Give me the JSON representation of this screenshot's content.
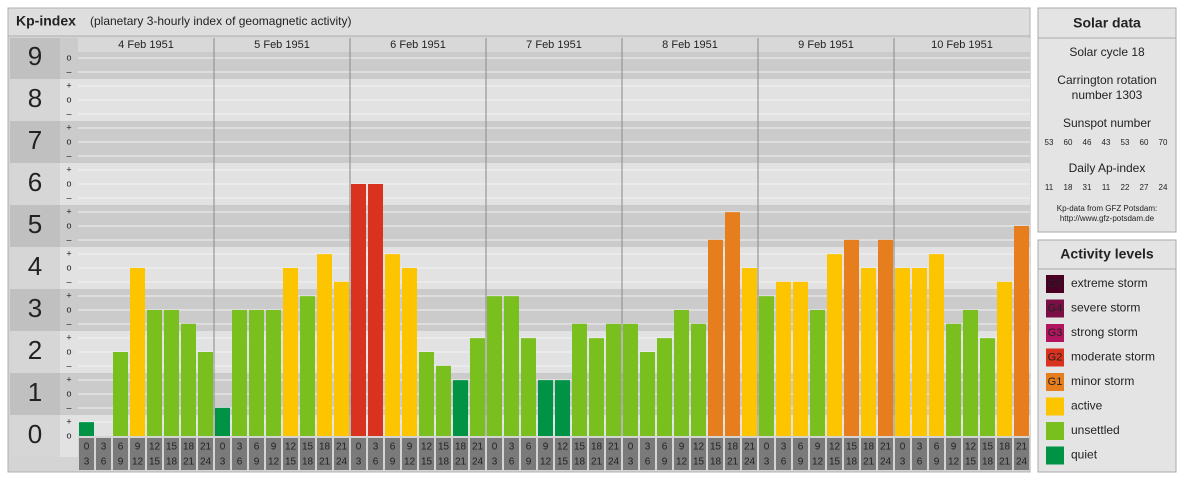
{
  "chart_data": {
    "type": "bar",
    "title": "Kp-index",
    "subtitle": "(planetary 3-hourly index of geomagnetic activity)",
    "days": [
      "4 Feb 1951",
      "5 Feb 1951",
      "6 Feb 1951",
      "7 Feb 1951",
      "8 Feb 1951",
      "9 Feb 1951",
      "10 Feb 1951"
    ],
    "hours_from": [
      0,
      3,
      6,
      9,
      12,
      15,
      18,
      21
    ],
    "hours_to": [
      3,
      6,
      9,
      12,
      15,
      18,
      21,
      24
    ],
    "values": [
      0.33,
      0,
      2,
      4,
      3,
      3,
      2.67,
      2,
      0.67,
      3,
      3,
      3,
      4,
      3.33,
      4.33,
      3.67,
      6,
      6,
      4.33,
      4,
      2,
      1.67,
      1.33,
      2.33,
      3.33,
      3.33,
      2.33,
      1.33,
      1.33,
      2.67,
      2.33,
      2.67,
      2.67,
      2,
      2.33,
      3,
      2.67,
      4.67,
      5.33,
      4,
      3.33,
      3.67,
      3.67,
      3,
      4.33,
      4.67,
      4,
      4.67,
      4,
      4,
      4.33,
      2.67,
      3,
      2.33,
      3.67,
      5
    ],
    "colors": [
      "#009245",
      "#009245",
      "#79c01f",
      "#fdc400",
      "#79c01f",
      "#79c01f",
      "#79c01f",
      "#79c01f",
      "#009245",
      "#79c01f",
      "#79c01f",
      "#79c01f",
      "#fdc400",
      "#79c01f",
      "#fdc400",
      "#fdc400",
      "#d9321f",
      "#d9321f",
      "#fdc400",
      "#fdc400",
      "#79c01f",
      "#79c01f",
      "#009245",
      "#79c01f",
      "#79c01f",
      "#79c01f",
      "#79c01f",
      "#009245",
      "#009245",
      "#79c01f",
      "#79c01f",
      "#79c01f",
      "#79c01f",
      "#79c01f",
      "#79c01f",
      "#79c01f",
      "#79c01f",
      "#e67e1d",
      "#e67e1d",
      "#fdc400",
      "#79c01f",
      "#fdc400",
      "#fdc400",
      "#79c01f",
      "#fdc400",
      "#e67e1d",
      "#fdc400",
      "#e67e1d",
      "#fdc400",
      "#fdc400",
      "#fdc400",
      "#79c01f",
      "#79c01f",
      "#79c01f",
      "#fdc400",
      "#e67e1d"
    ],
    "ylim": [
      0,
      9
    ],
    "yticks": [
      0,
      1,
      2,
      3,
      4,
      5,
      6,
      7,
      8,
      9
    ],
    "minor_tick_labels": [
      "–",
      "o",
      "+"
    ],
    "grid": true
  },
  "solar_data": {
    "title": "Solar data",
    "solar_cycle": "Solar cycle 18",
    "carrington": [
      "Carrington rotation",
      "number 1303"
    ],
    "sunspot_title": "Sunspot number",
    "sunspot": [
      53,
      60,
      46,
      43,
      53,
      60,
      70
    ],
    "ap_title": "Daily Ap-index",
    "ap": [
      11,
      18,
      31,
      11,
      22,
      27,
      24
    ],
    "source": "Kp-data from GFZ Potsdam:",
    "url": "http://www.gfz-potsdam.de"
  },
  "activity_levels": {
    "title": "Activity levels",
    "levels": [
      {
        "code": "G5",
        "name": "extreme storm",
        "color": "#4a0024"
      },
      {
        "code": "G4",
        "name": "severe storm",
        "color": "#7a0f45"
      },
      {
        "code": "G3",
        "name": "strong storm",
        "color": "#b0155e"
      },
      {
        "code": "G2",
        "name": "moderate storm",
        "color": "#d9321f"
      },
      {
        "code": "G1",
        "name": "minor storm",
        "color": "#e67e1d"
      },
      {
        "name": "active",
        "color": "#fdc400"
      },
      {
        "name": "unsettled",
        "color": "#79c01f"
      },
      {
        "name": "quiet",
        "color": "#009245"
      }
    ]
  }
}
